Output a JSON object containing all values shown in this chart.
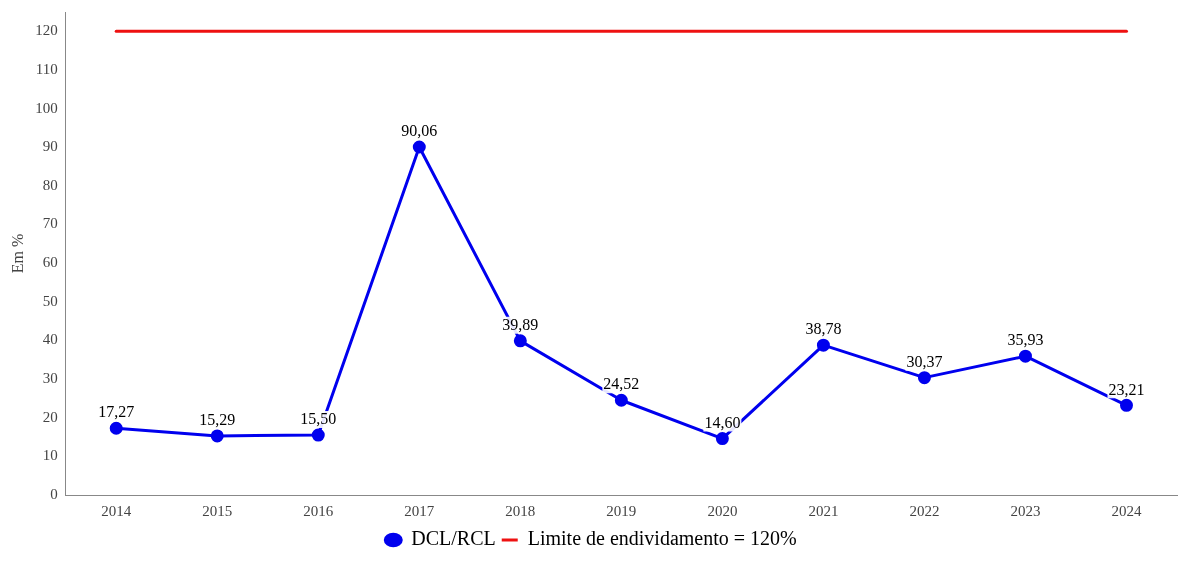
{
  "chart_data": {
    "type": "line",
    "ylabel": "Em %",
    "categories": [
      "2014",
      "2015",
      "2016",
      "2017",
      "2018",
      "2019",
      "2020",
      "2021",
      "2022",
      "2023",
      "2024"
    ],
    "series": [
      {
        "name": "DCL/RCL",
        "color": "#0000ee",
        "values": [
          17.27,
          15.29,
          15.5,
          90.06,
          39.89,
          24.52,
          14.6,
          38.78,
          30.37,
          35.93,
          23.21
        ],
        "value_labels": [
          "17,27",
          "15,29",
          "15,50",
          "90,06",
          "39,89",
          "24,52",
          "14,60",
          "38,78",
          "30,37",
          "35,93",
          "23,21"
        ]
      },
      {
        "name": "Limite de endividamento = 120%",
        "color": "#ee1111",
        "marker": "none",
        "values": [
          120,
          120,
          120,
          120,
          120,
          120,
          120,
          120,
          120,
          120,
          120
        ]
      }
    ],
    "ylim": [
      0,
      125
    ],
    "yticks": [
      0,
      10,
      20,
      30,
      40,
      50,
      60,
      70,
      80,
      90,
      100,
      110,
      120
    ],
    "marker": "circle",
    "line_style": "solid",
    "grid": false,
    "legend": "bottom"
  }
}
